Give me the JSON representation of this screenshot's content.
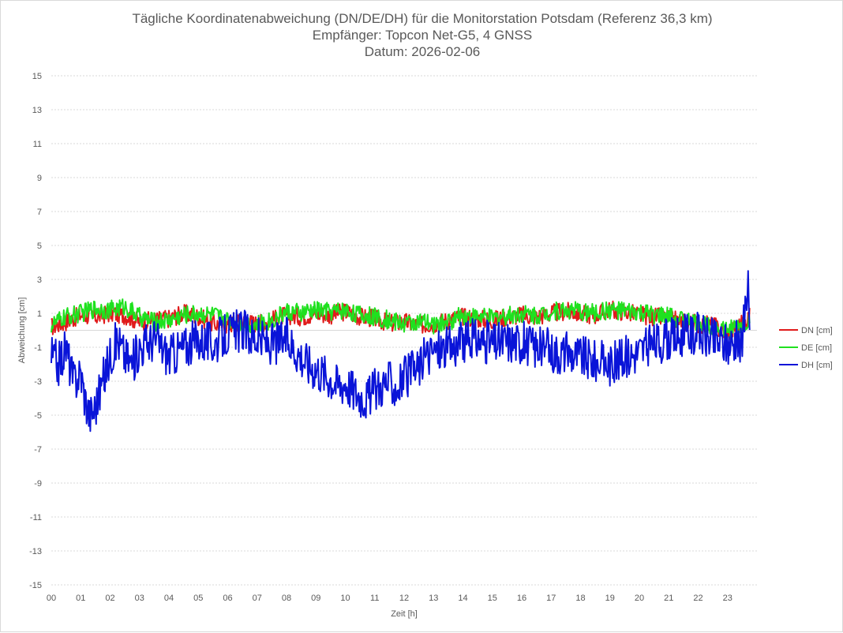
{
  "chart_data": {
    "type": "line",
    "title": [
      "Tägliche Koordinatenabweichung (DN/DE/DH) für die Monitorstation Potsdam (Referenz 36,3 km)",
      "Empfänger: Topcon Net-G5, 4 GNSS",
      "Datum: 2026-02-06"
    ],
    "xlabel": "Zeit [h]",
    "ylabel": "Abweichung [cm]",
    "xlim": [
      0,
      24
    ],
    "ylim": [
      -15,
      15
    ],
    "xticks": [
      "00",
      "01",
      "02",
      "03",
      "04",
      "05",
      "06",
      "07",
      "08",
      "09",
      "10",
      "11",
      "12",
      "13",
      "14",
      "15",
      "16",
      "17",
      "18",
      "19",
      "20",
      "21",
      "22",
      "23"
    ],
    "yticks": [
      15,
      13,
      11,
      9,
      7,
      5,
      3,
      1,
      -1,
      -3,
      -5,
      -7,
      -9,
      -11,
      -13,
      -15
    ],
    "grid": true,
    "legend_position": "right",
    "series": [
      {
        "name": "DN [cm]",
        "color": "#e01b1b",
        "x": [
          0,
          0.5,
          1,
          1.5,
          2,
          2.5,
          3,
          3.5,
          4,
          4.5,
          5,
          5.5,
          6,
          6.5,
          7,
          7.5,
          8,
          8.5,
          9,
          9.5,
          10,
          10.5,
          11,
          11.5,
          12,
          12.5,
          13,
          13.5,
          14,
          14.5,
          15,
          15.5,
          16,
          16.5,
          17,
          17.5,
          18,
          18.5,
          19,
          19.5,
          20,
          20.5,
          21,
          21.5,
          22,
          22.5,
          23,
          23.5,
          23.75
        ],
        "values": [
          0.2,
          0.5,
          0.9,
          0.8,
          1.0,
          0.9,
          0.5,
          0.6,
          0.7,
          1.0,
          0.8,
          0.4,
          0.3,
          0.5,
          0.4,
          0.6,
          0.9,
          0.8,
          1.0,
          0.9,
          1.1,
          0.8,
          0.7,
          0.4,
          0.5,
          0.3,
          0.4,
          0.6,
          0.8,
          0.7,
          0.6,
          0.8,
          0.9,
          0.8,
          1.0,
          1.1,
          1.0,
          0.9,
          1.2,
          1.1,
          0.9,
          0.8,
          0.7,
          0.5,
          0.4,
          0.3,
          -0.2,
          0.4,
          0.8
        ]
      },
      {
        "name": "DE [cm]",
        "color": "#1fe11f",
        "x": [
          0,
          0.5,
          1,
          1.5,
          2,
          2.5,
          3,
          3.5,
          4,
          4.5,
          5,
          5.5,
          6,
          6.5,
          7,
          7.5,
          8,
          8.5,
          9,
          9.5,
          10,
          10.5,
          11,
          11.5,
          12,
          12.5,
          13,
          13.5,
          14,
          14.5,
          15,
          15.5,
          16,
          16.5,
          17,
          17.5,
          18,
          18.5,
          19,
          19.5,
          20,
          20.5,
          21,
          21.5,
          22,
          22.5,
          23,
          23.5,
          23.75
        ],
        "values": [
          0.3,
          0.8,
          1.0,
          1.3,
          1.2,
          1.4,
          0.8,
          0.5,
          0.6,
          0.9,
          1.0,
          0.9,
          0.6,
          0.5,
          0.3,
          0.6,
          1.1,
          1.0,
          1.2,
          1.1,
          1.2,
          0.9,
          0.8,
          0.6,
          0.4,
          0.5,
          0.3,
          0.5,
          0.9,
          0.8,
          0.7,
          0.9,
          1.0,
          0.9,
          1.1,
          1.2,
          1.1,
          1.0,
          1.2,
          1.1,
          1.0,
          0.9,
          0.8,
          0.6,
          0.4,
          0.3,
          0.0,
          0.3,
          0.6
        ]
      },
      {
        "name": "DH [cm]",
        "color": "#0a14d8",
        "x": [
          0,
          0.25,
          0.5,
          0.75,
          1,
          1.15,
          1.3,
          1.5,
          1.75,
          2,
          2.25,
          2.5,
          2.75,
          3,
          3.5,
          4,
          4.5,
          5,
          5.5,
          6,
          6.5,
          7,
          7.5,
          8,
          8.25,
          8.5,
          8.75,
          9,
          9.25,
          9.5,
          9.75,
          10,
          10.25,
          10.5,
          10.75,
          11,
          11.25,
          11.5,
          11.75,
          12,
          12.25,
          12.5,
          12.75,
          13,
          13.5,
          14,
          14.5,
          15,
          15.5,
          16,
          16.5,
          17,
          17.5,
          18,
          18.5,
          19,
          19.5,
          20,
          20.5,
          21,
          21.5,
          22,
          22.5,
          23,
          23.25,
          23.5,
          23.6,
          23.7,
          23.75
        ],
        "values": [
          -1.5,
          -2.0,
          -1.0,
          -3.0,
          -2.5,
          -4.0,
          -5.0,
          -4.5,
          -3.0,
          -1.5,
          -0.5,
          -1.5,
          -2.0,
          -1.0,
          -0.5,
          -1.5,
          -1.0,
          -0.5,
          -0.8,
          -0.2,
          0.0,
          -0.5,
          -0.8,
          -0.5,
          -1.0,
          -1.5,
          -2.0,
          -2.2,
          -2.5,
          -2.8,
          -3.2,
          -3.0,
          -3.5,
          -3.8,
          -4.0,
          -3.5,
          -3.2,
          -3.0,
          -3.4,
          -2.8,
          -2.5,
          -2.2,
          -1.5,
          -1.2,
          -1.0,
          -0.8,
          -0.5,
          -0.8,
          -0.6,
          -0.7,
          -1.0,
          -1.2,
          -1.3,
          -1.5,
          -1.8,
          -2.0,
          -1.6,
          -1.2,
          -0.8,
          -0.5,
          -0.3,
          -0.2,
          -0.5,
          -0.8,
          -0.6,
          -1.0,
          1.5,
          3.2,
          -0.5
        ]
      }
    ]
  }
}
